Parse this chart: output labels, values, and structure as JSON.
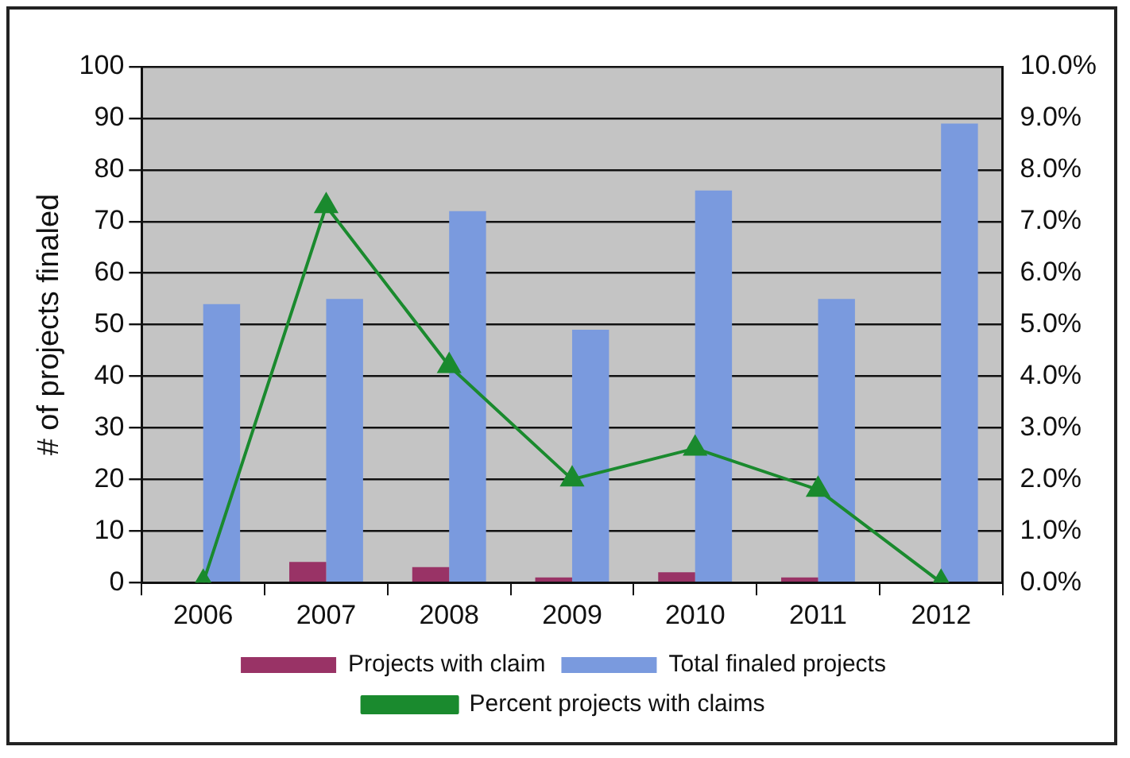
{
  "chart_data": {
    "type": "bar",
    "ylabel": "# of projects finaled",
    "categories": [
      "2006",
      "2007",
      "2008",
      "2009",
      "2010",
      "2011",
      "2012"
    ],
    "series": [
      {
        "name": "Projects with claim",
        "color": "#993366",
        "values": [
          0,
          4,
          3,
          1,
          2,
          1,
          0
        ]
      },
      {
        "name": "Total finaled projects",
        "color": "#7a9ade",
        "values": [
          54,
          55,
          72,
          49,
          76,
          55,
          89
        ]
      },
      {
        "name": "Percent projects with claims",
        "type": "line",
        "axis": "y2",
        "color": "#1a8a2e",
        "marker": "triangle",
        "values": [
          0,
          7.3,
          4.2,
          2.0,
          2.6,
          1.8,
          0
        ]
      }
    ],
    "ylim": [
      0,
      100
    ],
    "yticks": [
      0,
      10,
      20,
      30,
      40,
      50,
      60,
      70,
      80,
      90,
      100
    ],
    "y2lim": [
      0,
      10
    ],
    "y2ticks": [
      {
        "value": 0,
        "label": "0.0%"
      },
      {
        "value": 1,
        "label": "1.0%"
      },
      {
        "value": 2,
        "label": "2.0%"
      },
      {
        "value": 3,
        "label": "3.0%"
      },
      {
        "value": 4,
        "label": "4.0%"
      },
      {
        "value": 5,
        "label": "5.0%"
      },
      {
        "value": 6,
        "label": "6.0%"
      },
      {
        "value": 7,
        "label": "7.0%"
      },
      {
        "value": 8,
        "label": "8.0%"
      },
      {
        "value": 9,
        "label": "9.0%"
      },
      {
        "value": 10,
        "label": "10.0%"
      }
    ],
    "grid": "y",
    "legend": "bottom"
  }
}
